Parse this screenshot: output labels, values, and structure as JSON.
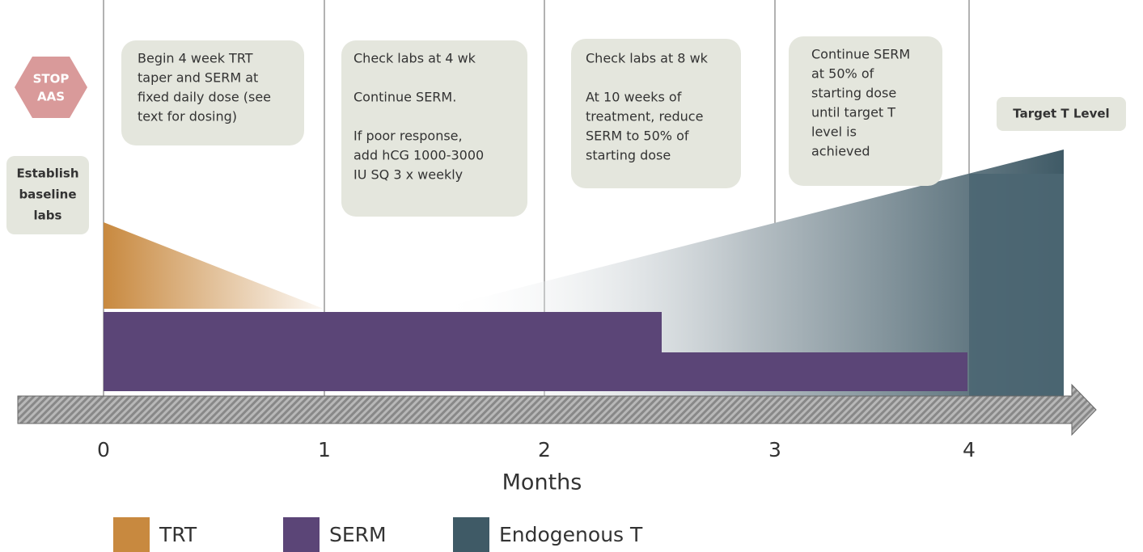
{
  "stop_sign": {
    "lines": [
      "STOP",
      "AAS"
    ]
  },
  "baseline": {
    "lines": [
      "Establish",
      "baseline",
      "labs"
    ]
  },
  "boxes": [
    {
      "lines": [
        "Begin 4 week TRT",
        "taper and SERM at",
        "fixed daily dose (see",
        "text for dosing)"
      ]
    },
    {
      "lines": [
        "Check labs at 4 wk",
        "",
        "Continue SERM.",
        "",
        "If poor response,",
        "add hCG 1000-3000",
        "IU SQ 3 x weekly"
      ]
    },
    {
      "lines": [
        "Check labs at 8 wk",
        "",
        "At 10 weeks of",
        "treatment, reduce",
        "SERM to 50% of",
        "starting dose"
      ]
    },
    {
      "lines": [
        "Continue SERM",
        "at 50% of",
        "starting dose",
        "until target T",
        "level is",
        "achieved"
      ]
    }
  ],
  "target_label": "Target T Level",
  "axis": {
    "ticks": [
      "0",
      "1",
      "2",
      "3",
      "4"
    ],
    "label": "Months"
  },
  "legend": [
    {
      "name": "TRT",
      "color": "#c8893f"
    },
    {
      "name": "SERM",
      "color": "#5b4577"
    },
    {
      "name": "Endogenous T",
      "color": "#3f5a66"
    }
  ]
}
